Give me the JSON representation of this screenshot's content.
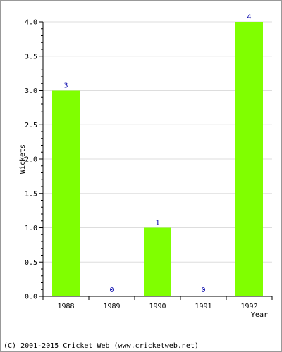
{
  "chart_data": {
    "type": "bar",
    "categories": [
      "1988",
      "1989",
      "1990",
      "1991",
      "1992"
    ],
    "values": [
      3,
      0,
      1,
      0,
      4
    ],
    "data_labels": [
      "3",
      "0",
      "1",
      "0",
      "4"
    ],
    "xlabel": "Year",
    "ylabel": "Wickets",
    "ylim": [
      0,
      4.0
    ],
    "yticks": [
      "0.0",
      "0.5",
      "1.0",
      "1.5",
      "2.0",
      "2.5",
      "3.0",
      "3.5",
      "4.0"
    ],
    "grid": true,
    "bar_color": "#80ff00",
    "label_color": "#0000aa"
  },
  "footer": {
    "copyright": "(C) 2001-2015 Cricket Web (www.cricketweb.net)"
  }
}
